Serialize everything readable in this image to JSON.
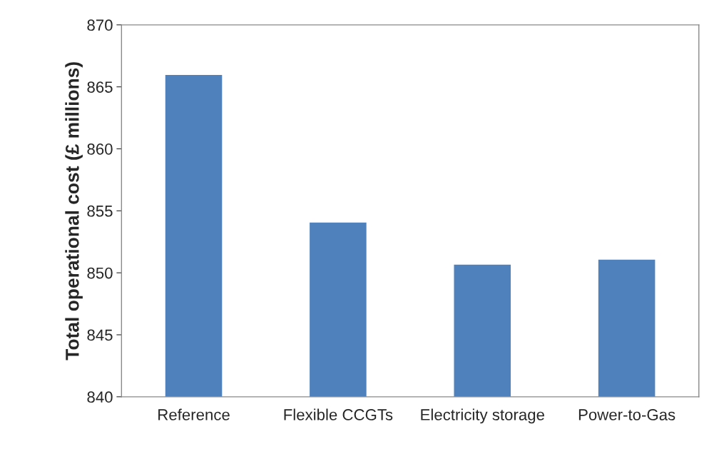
{
  "chart_data": {
    "type": "bar",
    "ylabel": "Total operational cost (£ millions)",
    "categories": [
      "Reference",
      "Flexible CCGTs",
      "Electricity storage",
      "Power-to-Gas"
    ],
    "values": [
      866.0,
      854.1,
      850.7,
      851.1
    ],
    "color": "#4f81bd",
    "ylim": [
      840,
      870
    ],
    "yticks": [
      840,
      845,
      850,
      855,
      860,
      865,
      870
    ],
    "grid": false,
    "legend": false
  }
}
